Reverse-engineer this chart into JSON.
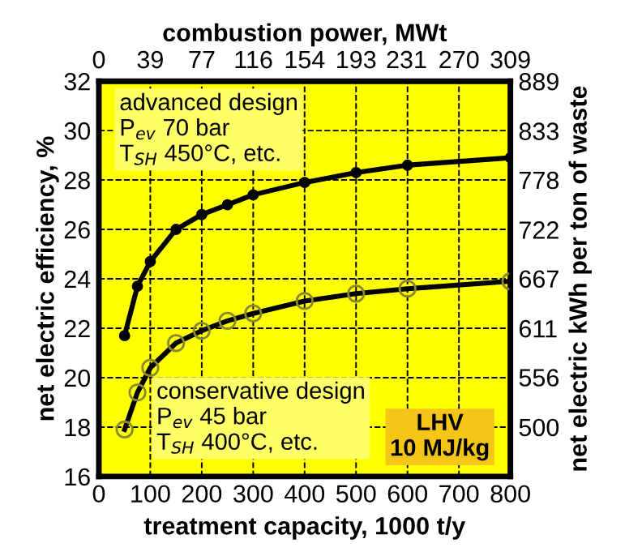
{
  "chart_data": {
    "type": "line",
    "xlabel": "treatment capacity, 1000 t/y",
    "ylabel": "net electric efficiency, %",
    "y2label": "net electric kWh per ton of waste",
    "x2label": "combustion power, MWt",
    "xlim": [
      0,
      800
    ],
    "xticks": [
      0,
      100,
      200,
      300,
      400,
      500,
      600,
      700,
      800
    ],
    "ylim": [
      16,
      32
    ],
    "yticks": [
      16,
      18,
      20,
      22,
      24,
      26,
      28,
      30,
      32
    ],
    "y2lim": [
      444.4,
      889
    ],
    "y2ticks": [
      500,
      556,
      611,
      667,
      722,
      778,
      833,
      889
    ],
    "x2lim": [
      0,
      309
    ],
    "x2ticks": [
      0,
      {
        "value": 38.6,
        "label": "39"
      },
      {
        "value": 77.3,
        "label": "77"
      },
      116,
      {
        "value": 154.5,
        "label": "154"
      },
      {
        "value": 193.1,
        "label": "193"
      },
      231,
      {
        "value": 270.4,
        "label": "270"
      },
      309
    ],
    "grid": true,
    "marker": "circle",
    "line_style": "solid",
    "series": [
      {
        "color": "#000000",
        "x": [
          50,
          75,
          100,
          150,
          200,
          250,
          300,
          400,
          500,
          600,
          800
        ],
        "values": [
          21.7,
          23.7,
          24.7,
          26.0,
          26.6,
          27.0,
          27.4,
          27.9,
          28.3,
          28.6,
          28.9
        ]
      },
      {
        "color": "#000000",
        "x": [
          50,
          75,
          100,
          150,
          200,
          250,
          300,
          400,
          500,
          600,
          800
        ],
        "values": [
          17.9,
          19.4,
          20.4,
          21.4,
          21.9,
          22.3,
          22.6,
          23.1,
          23.4,
          23.6,
          23.9
        ]
      }
    ],
    "annotations": [
      "advanced design\nP$_{ev}$ 70 bar\nT$_{SH}$ 450°C, etc.",
      "conservative design\nP$_{ev}$ 45 bar\nT$_{SH}$ 400°C, etc.",
      "LHV\n10 MJ/kg"
    ]
  }
}
